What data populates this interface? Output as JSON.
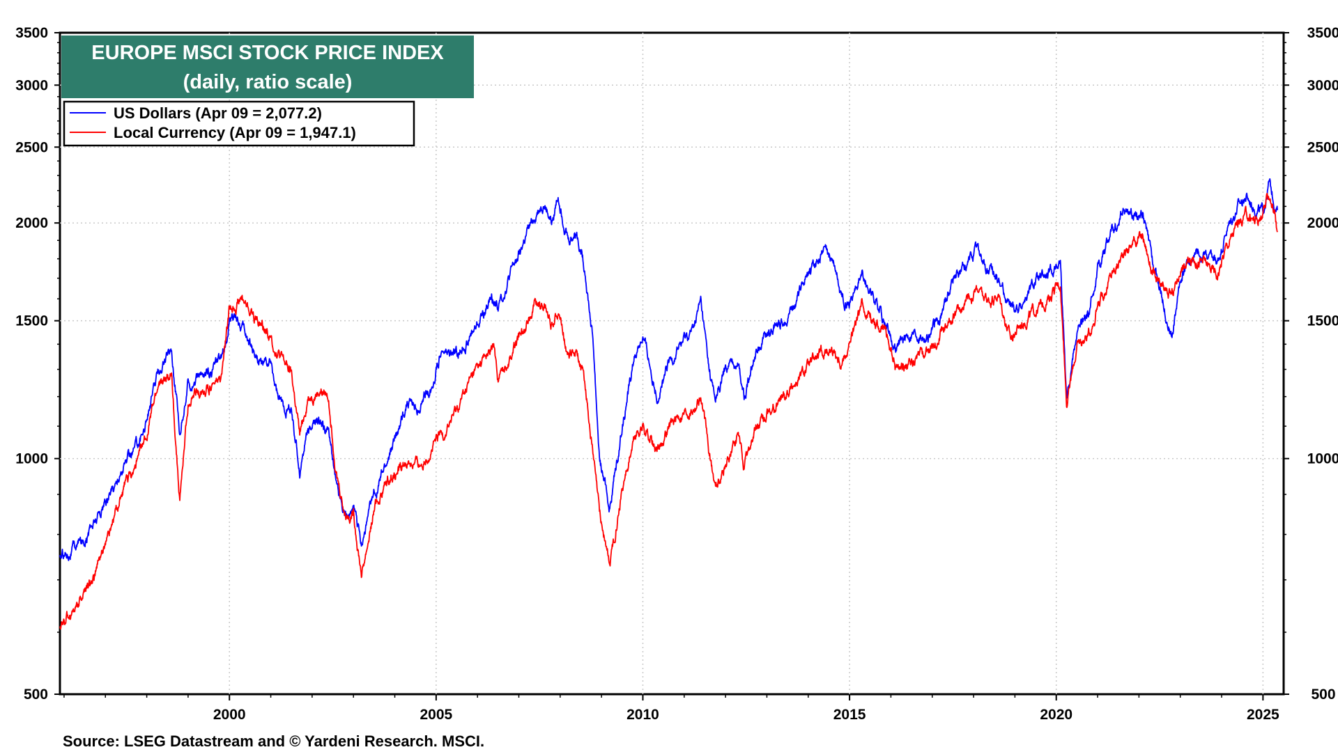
{
  "chart_data": {
    "type": "line",
    "title": "EUROPE MSCI STOCK PRICE INDEX",
    "subtitle": "(daily, ratio scale)",
    "source": "Source: LSEG Datastream and © Yardeni Research. MSCI.",
    "y_scale": "log",
    "ylim": [
      500,
      3500
    ],
    "xlim": [
      1995.9,
      2025.5
    ],
    "y_ticks": [
      {
        "value": 500,
        "label": "500"
      },
      {
        "value": 1000,
        "label": "1000"
      },
      {
        "value": 1500,
        "label": "1500"
      },
      {
        "value": 2000,
        "label": "2000"
      },
      {
        "value": 2500,
        "label": "2500"
      },
      {
        "value": 3000,
        "label": "3000"
      },
      {
        "value": 3500,
        "label": "3500"
      }
    ],
    "x_ticks": [
      {
        "value": 2000,
        "label": "2000"
      },
      {
        "value": 2005,
        "label": "2005"
      },
      {
        "value": 2010,
        "label": "2010"
      },
      {
        "value": 2015,
        "label": "2015"
      },
      {
        "value": 2020,
        "label": "2020"
      },
      {
        "value": 2025,
        "label": "2025"
      }
    ],
    "grid": true,
    "legend_position": "top-left",
    "series": [
      {
        "name": "US Dollars (Apr 09 = 2,077.2)",
        "color": "#0000ff",
        "points": [
          [
            1995.9,
            750
          ],
          [
            1996.5,
            790
          ],
          [
            1997.0,
            880
          ],
          [
            1997.5,
            990
          ],
          [
            1997.9,
            1080
          ],
          [
            1998.3,
            1300
          ],
          [
            1998.6,
            1380
          ],
          [
            1998.8,
            1080
          ],
          [
            1999.0,
            1250
          ],
          [
            1999.5,
            1290
          ],
          [
            1999.8,
            1330
          ],
          [
            2000.0,
            1500
          ],
          [
            2000.2,
            1520
          ],
          [
            2000.5,
            1400
          ],
          [
            2000.8,
            1320
          ],
          [
            2001.0,
            1320
          ],
          [
            2001.2,
            1180
          ],
          [
            2001.5,
            1150
          ],
          [
            2001.7,
            960
          ],
          [
            2001.9,
            1100
          ],
          [
            2002.2,
            1110
          ],
          [
            2002.4,
            1080
          ],
          [
            2002.6,
            920
          ],
          [
            2002.8,
            850
          ],
          [
            2003.0,
            860
          ],
          [
            2003.2,
            780
          ],
          [
            2003.5,
            900
          ],
          [
            2003.8,
            980
          ],
          [
            2004.0,
            1060
          ],
          [
            2004.3,
            1180
          ],
          [
            2004.6,
            1160
          ],
          [
            2004.9,
            1230
          ],
          [
            2005.1,
            1370
          ],
          [
            2005.4,
            1350
          ],
          [
            2005.7,
            1400
          ],
          [
            2006.0,
            1480
          ],
          [
            2006.3,
            1600
          ],
          [
            2006.5,
            1560
          ],
          [
            2006.8,
            1720
          ],
          [
            2007.1,
            1880
          ],
          [
            2007.4,
            2050
          ],
          [
            2007.6,
            2130
          ],
          [
            2007.8,
            2000
          ],
          [
            2007.95,
            2180
          ],
          [
            2008.2,
            1900
          ],
          [
            2008.4,
            1950
          ],
          [
            2008.6,
            1750
          ],
          [
            2008.8,
            1400
          ],
          [
            2008.95,
            1000
          ],
          [
            2009.2,
            860
          ],
          [
            2009.5,
            1100
          ],
          [
            2009.8,
            1350
          ],
          [
            2010.0,
            1430
          ],
          [
            2010.35,
            1200
          ],
          [
            2010.6,
            1300
          ],
          [
            2010.9,
            1400
          ],
          [
            2011.2,
            1450
          ],
          [
            2011.4,
            1580
          ],
          [
            2011.6,
            1300
          ],
          [
            2011.75,
            1180
          ],
          [
            2012.0,
            1300
          ],
          [
            2012.3,
            1340
          ],
          [
            2012.45,
            1190
          ],
          [
            2012.7,
            1370
          ],
          [
            2013.0,
            1440
          ],
          [
            2013.4,
            1500
          ],
          [
            2013.7,
            1590
          ],
          [
            2014.0,
            1740
          ],
          [
            2014.4,
            1830
          ],
          [
            2014.6,
            1790
          ],
          [
            2014.8,
            1600
          ],
          [
            2015.0,
            1590
          ],
          [
            2015.3,
            1720
          ],
          [
            2015.6,
            1600
          ],
          [
            2015.9,
            1480
          ],
          [
            2016.1,
            1380
          ],
          [
            2016.5,
            1450
          ],
          [
            2016.9,
            1430
          ],
          [
            2017.2,
            1520
          ],
          [
            2017.5,
            1700
          ],
          [
            2017.9,
            1780
          ],
          [
            2018.1,
            1850
          ],
          [
            2018.3,
            1740
          ],
          [
            2018.6,
            1700
          ],
          [
            2018.9,
            1560
          ],
          [
            2019.1,
            1560
          ],
          [
            2019.5,
            1680
          ],
          [
            2019.8,
            1700
          ],
          [
            2020.1,
            1790
          ],
          [
            2020.25,
            1200
          ],
          [
            2020.5,
            1460
          ],
          [
            2020.8,
            1520
          ],
          [
            2021.0,
            1760
          ],
          [
            2021.3,
            1940
          ],
          [
            2021.6,
            2050
          ],
          [
            2021.9,
            2060
          ],
          [
            2022.1,
            2050
          ],
          [
            2022.3,
            1800
          ],
          [
            2022.5,
            1650
          ],
          [
            2022.7,
            1500
          ],
          [
            2022.8,
            1430
          ],
          [
            2023.0,
            1700
          ],
          [
            2023.3,
            1810
          ],
          [
            2023.6,
            1820
          ],
          [
            2023.9,
            1780
          ],
          [
            2024.1,
            1950
          ],
          [
            2024.4,
            2100
          ],
          [
            2024.6,
            2160
          ],
          [
            2024.8,
            2090
          ],
          [
            2025.0,
            2060
          ],
          [
            2025.15,
            2250
          ],
          [
            2025.3,
            2100
          ],
          [
            2025.35,
            2077
          ]
        ]
      },
      {
        "name": "Local Currency (Apr 09 = 1,947.1)",
        "color": "#ff0000",
        "points": [
          [
            1995.9,
            610
          ],
          [
            1996.3,
            650
          ],
          [
            1996.7,
            700
          ],
          [
            1997.0,
            780
          ],
          [
            1997.5,
            930
          ],
          [
            1997.9,
            1030
          ],
          [
            1998.3,
            1250
          ],
          [
            1998.6,
            1270
          ],
          [
            1998.8,
            880
          ],
          [
            1999.0,
            1180
          ],
          [
            1999.5,
            1240
          ],
          [
            1999.8,
            1260
          ],
          [
            2000.0,
            1550
          ],
          [
            2000.3,
            1600
          ],
          [
            2000.6,
            1520
          ],
          [
            2000.9,
            1450
          ],
          [
            2001.2,
            1360
          ],
          [
            2001.5,
            1280
          ],
          [
            2001.7,
            1070
          ],
          [
            2001.9,
            1200
          ],
          [
            2002.2,
            1220
          ],
          [
            2002.4,
            1200
          ],
          [
            2002.6,
            950
          ],
          [
            2002.8,
            850
          ],
          [
            2003.0,
            850
          ],
          [
            2003.2,
            710
          ],
          [
            2003.5,
            860
          ],
          [
            2003.8,
            930
          ],
          [
            2004.0,
            960
          ],
          [
            2004.3,
            990
          ],
          [
            2004.6,
            980
          ],
          [
            2004.9,
            1030
          ],
          [
            2005.2,
            1080
          ],
          [
            2005.5,
            1150
          ],
          [
            2005.8,
            1250
          ],
          [
            2006.1,
            1330
          ],
          [
            2006.4,
            1380
          ],
          [
            2006.5,
            1260
          ],
          [
            2006.8,
            1350
          ],
          [
            2007.1,
            1470
          ],
          [
            2007.4,
            1580
          ],
          [
            2007.6,
            1570
          ],
          [
            2007.8,
            1480
          ],
          [
            2007.95,
            1560
          ],
          [
            2008.2,
            1350
          ],
          [
            2008.4,
            1380
          ],
          [
            2008.6,
            1250
          ],
          [
            2008.8,
            1000
          ],
          [
            2008.95,
            850
          ],
          [
            2009.2,
            730
          ],
          [
            2009.5,
            920
          ],
          [
            2009.8,
            1060
          ],
          [
            2010.0,
            1100
          ],
          [
            2010.35,
            1020
          ],
          [
            2010.6,
            1090
          ],
          [
            2010.9,
            1140
          ],
          [
            2011.2,
            1160
          ],
          [
            2011.4,
            1200
          ],
          [
            2011.6,
            1020
          ],
          [
            2011.75,
            920
          ],
          [
            2012.0,
            980
          ],
          [
            2012.3,
            1070
          ],
          [
            2012.45,
            970
          ],
          [
            2012.7,
            1080
          ],
          [
            2013.0,
            1130
          ],
          [
            2013.4,
            1200
          ],
          [
            2013.7,
            1250
          ],
          [
            2014.0,
            1310
          ],
          [
            2014.4,
            1370
          ],
          [
            2014.6,
            1380
          ],
          [
            2014.8,
            1330
          ],
          [
            2015.0,
            1400
          ],
          [
            2015.3,
            1570
          ],
          [
            2015.6,
            1500
          ],
          [
            2015.9,
            1440
          ],
          [
            2016.1,
            1300
          ],
          [
            2016.5,
            1320
          ],
          [
            2016.9,
            1370
          ],
          [
            2017.2,
            1450
          ],
          [
            2017.5,
            1520
          ],
          [
            2017.9,
            1600
          ],
          [
            2018.1,
            1650
          ],
          [
            2018.3,
            1580
          ],
          [
            2018.6,
            1620
          ],
          [
            2018.9,
            1420
          ],
          [
            2019.1,
            1480
          ],
          [
            2019.5,
            1550
          ],
          [
            2019.8,
            1600
          ],
          [
            2020.1,
            1680
          ],
          [
            2020.25,
            1180
          ],
          [
            2020.5,
            1390
          ],
          [
            2020.8,
            1450
          ],
          [
            2021.0,
            1560
          ],
          [
            2021.3,
            1700
          ],
          [
            2021.6,
            1820
          ],
          [
            2021.9,
            1900
          ],
          [
            2022.1,
            1920
          ],
          [
            2022.3,
            1750
          ],
          [
            2022.5,
            1650
          ],
          [
            2022.7,
            1620
          ],
          [
            2022.8,
            1620
          ],
          [
            2023.0,
            1740
          ],
          [
            2023.3,
            1800
          ],
          [
            2023.6,
            1780
          ],
          [
            2023.9,
            1720
          ],
          [
            2024.1,
            1860
          ],
          [
            2024.4,
            2000
          ],
          [
            2024.6,
            2050
          ],
          [
            2024.8,
            2020
          ],
          [
            2025.0,
            2030
          ],
          [
            2025.15,
            2170
          ],
          [
            2025.3,
            2050
          ],
          [
            2025.35,
            1947
          ]
        ]
      }
    ]
  },
  "colors": {
    "title_background": "#2e7d6b",
    "series_usd": "#0000ff",
    "series_local": "#ff0000",
    "grid": "#c8c8c8"
  }
}
